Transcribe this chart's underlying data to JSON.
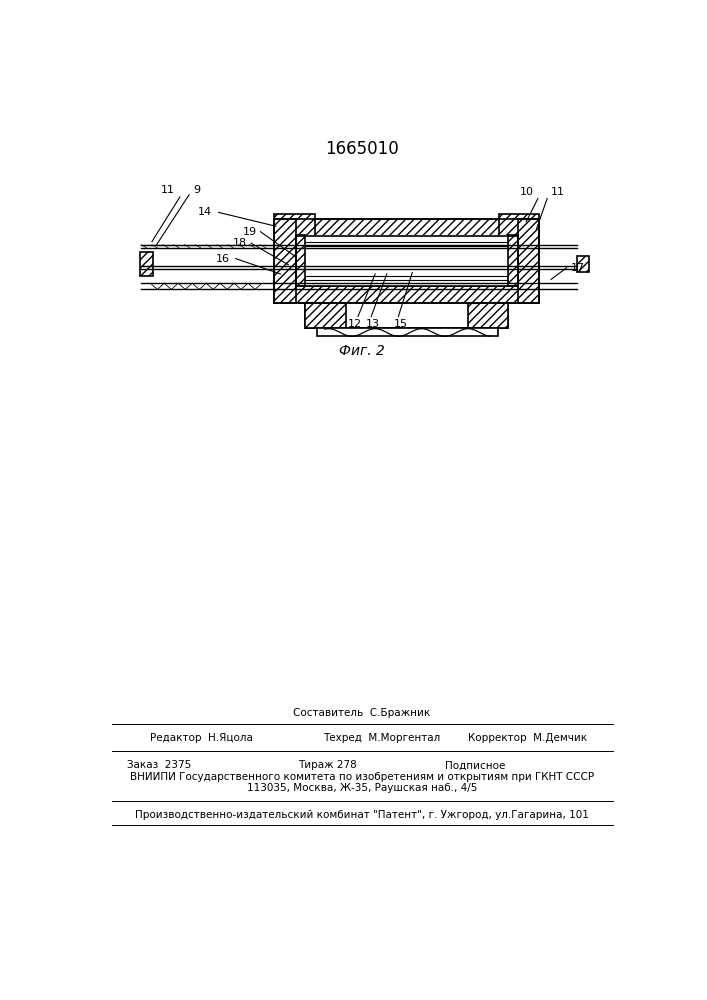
{
  "title": "1665010",
  "fig_label": "Фиг. 2",
  "bg_color": "#ffffff",
  "line_color": "#000000",
  "label_fs": 8.0,
  "title_fs": 12,
  "footer_sestavitel": "Составитель  С.Бражник",
  "footer_redaktor": "Редактор  Н.Яцола",
  "footer_tehred": "Техред  М.Моргентал",
  "footer_korrektor": "Корректор  М.Демчик",
  "footer_zakaz": "Заказ  2375",
  "footer_tirazh": "Тираж 278",
  "footer_podpisnoe": "Подписное",
  "footer_vniip": "ВНИИПИ Государственного комитета по изобретениям и открытиям при ГКНТ СССР",
  "footer_addr": "113035, Москва, Ж-35, Раушская наб., 4/5",
  "footer_patent": "Производственно-издательский комбинат \"Патент\", г. Ужгород, ул.Гагарина, 101"
}
